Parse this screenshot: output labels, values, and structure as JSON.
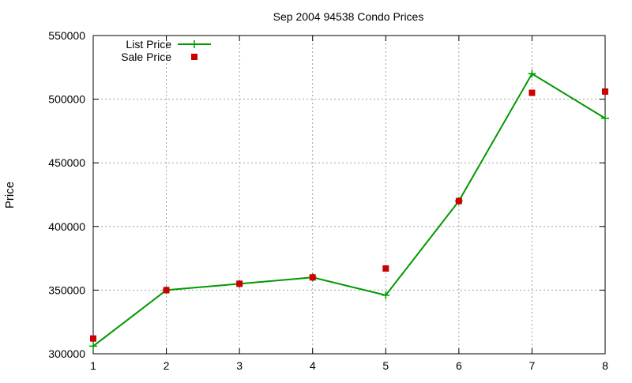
{
  "chart_data": {
    "type": "line",
    "title": "Sep 2004 94538 Condo Prices",
    "xlabel": "",
    "ylabel": "Price",
    "x": [
      1,
      2,
      3,
      4,
      5,
      6,
      7,
      8
    ],
    "xlim": [
      1,
      8
    ],
    "ylim": [
      300000,
      550000
    ],
    "xticks": [
      "1",
      "2",
      "3",
      "4",
      "5",
      "6",
      "7",
      "8"
    ],
    "yticks": [
      "300000",
      "350000",
      "400000",
      "450000",
      "500000",
      "550000"
    ],
    "grid": true,
    "legend_position": "top-left",
    "series": [
      {
        "name": "List Price",
        "style": "line-with-plus-markers",
        "color": "#009900",
        "values": [
          306000,
          350000,
          355000,
          360000,
          346000,
          420000,
          520000,
          485000
        ]
      },
      {
        "name": "Sale Price",
        "style": "square-markers",
        "color": "#cc0000",
        "values": [
          312000,
          350000,
          355000,
          360000,
          367000,
          420000,
          505000,
          506000
        ]
      }
    ]
  }
}
